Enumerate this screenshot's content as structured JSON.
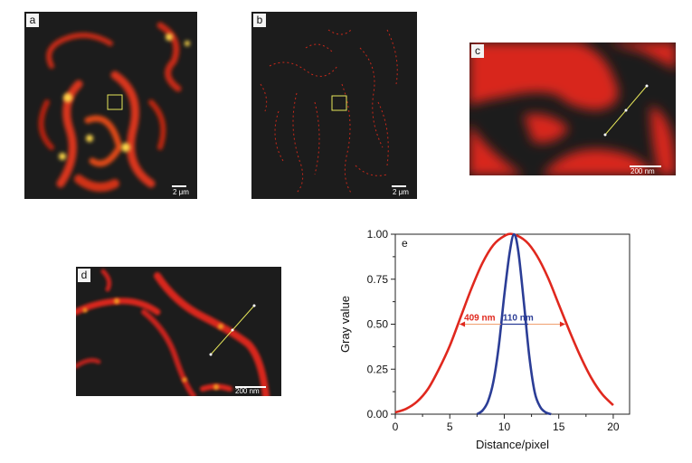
{
  "figure": {
    "panels": [
      {
        "id": "a",
        "label": "a",
        "scale_bar": "2 μm"
      },
      {
        "id": "b",
        "label": "b",
        "scale_bar": "2 μm"
      },
      {
        "id": "c",
        "label": "c",
        "scale_bar": "200 nm"
      },
      {
        "id": "d",
        "label": "d",
        "scale_bar": "200 nm"
      }
    ]
  },
  "colors": {
    "red_curve": "#e0281e",
    "blue_curve": "#2b3d96",
    "panel_bg": "#1c1c1c",
    "line_profile": "#e6e65a"
  },
  "chart_data": {
    "type": "line",
    "panel_label": "e",
    "xlabel": "Distance/pixel",
    "ylabel": "Gray value",
    "xlim": [
      0,
      21.5
    ],
    "ylim": [
      0,
      1.0
    ],
    "xticks": [
      "0",
      "5",
      "10",
      "15",
      "20"
    ],
    "yticks": [
      "0.00",
      "0.25",
      "0.50",
      "0.75",
      "1.00"
    ],
    "grid": false,
    "series": [
      {
        "color": "#e0281e",
        "x": [
          0,
          1,
          2,
          3,
          4,
          5,
          6,
          7,
          8,
          9,
          10,
          10.8,
          12,
          13,
          14,
          15,
          16,
          17,
          18,
          19,
          20
        ],
        "y": [
          0.01,
          0.03,
          0.07,
          0.14,
          0.25,
          0.38,
          0.54,
          0.7,
          0.84,
          0.94,
          0.99,
          1.0,
          0.96,
          0.88,
          0.76,
          0.61,
          0.46,
          0.32,
          0.2,
          0.11,
          0.05
        ]
      },
      {
        "color": "#2b3d96",
        "x": [
          7.5,
          8,
          8.5,
          9,
          9.5,
          10,
          10.5,
          10.9,
          11.3,
          11.8,
          12.3,
          12.8,
          13.3,
          13.8,
          14.3
        ],
        "y": [
          0.0,
          0.02,
          0.07,
          0.18,
          0.38,
          0.66,
          0.9,
          1.0,
          0.9,
          0.62,
          0.32,
          0.12,
          0.04,
          0.01,
          0.0
        ]
      }
    ],
    "annotations": [
      {
        "text": "409 nm",
        "color": "#e0281e",
        "x_from": 5.9,
        "x_to": 15.6,
        "y": 0.5
      },
      {
        "text": "110 nm",
        "color": "#2b3d96",
        "x_from": 9.7,
        "x_to": 12.2,
        "y": 0.5
      }
    ]
  }
}
